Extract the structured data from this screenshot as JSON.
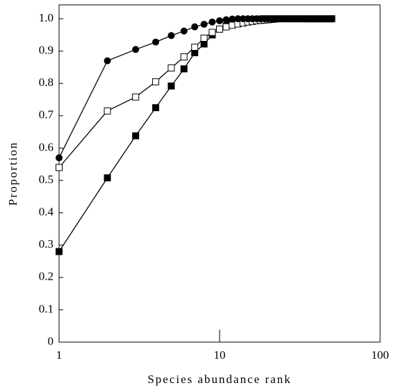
{
  "chart_data": {
    "type": "line",
    "xscale": "log",
    "x_label": "Species abundance rank",
    "y_label": "Proportion",
    "x": [
      1,
      2,
      3,
      4,
      5,
      6,
      7,
      8,
      9,
      10,
      11,
      12,
      13,
      14,
      15,
      16,
      17,
      18,
      19,
      20,
      21,
      22,
      23,
      24,
      25,
      26,
      27,
      28,
      29,
      30,
      31,
      32,
      33,
      34,
      35,
      36,
      37,
      38,
      39,
      40,
      41,
      42,
      43,
      44,
      45,
      46,
      47,
      48,
      49,
      50
    ],
    "series": [
      {
        "color": "#000000",
        "marker": "square",
        "marker_fill": "#000000",
        "values": [
          0.28,
          0.508,
          0.638,
          0.725,
          0.792,
          0.845,
          0.895,
          0.922,
          0.95,
          0.968,
          0.978,
          0.985,
          0.99,
          0.993,
          0.995,
          0.997,
          0.998,
          0.999,
          1,
          1,
          1,
          1,
          1,
          1,
          1,
          1,
          1,
          1,
          1,
          1,
          1,
          1,
          1,
          1,
          1,
          1,
          1,
          1,
          1,
          1,
          1,
          1,
          1,
          1,
          1,
          1,
          1,
          1,
          1,
          1
        ]
      },
      {
        "color": "#000000",
        "marker": "square",
        "marker_fill": "#ffffff",
        "values": [
          0.54,
          0.715,
          0.758,
          0.805,
          0.848,
          0.882,
          0.912,
          0.94,
          0.958,
          0.968,
          0.975,
          0.98,
          0.984,
          0.987,
          0.99,
          0.992,
          0.994,
          0.995,
          0.996,
          0.997,
          0.998,
          0.999,
          1,
          1,
          1,
          1,
          1,
          1,
          1,
          1,
          1,
          1,
          1,
          1,
          1,
          1,
          1,
          1,
          1,
          1,
          1,
          1,
          1,
          1,
          1,
          1,
          1,
          1,
          1,
          1
        ]
      },
      {
        "color": "#000000",
        "marker": "circle",
        "marker_fill": "#000000",
        "values": [
          0.57,
          0.87,
          0.905,
          0.928,
          0.948,
          0.962,
          0.975,
          0.983,
          0.99,
          0.994,
          0.997,
          0.999,
          1,
          1,
          1,
          1,
          1,
          1,
          1,
          1,
          1,
          1,
          1,
          1,
          1,
          1,
          1,
          1,
          1,
          1,
          1,
          1,
          1,
          1,
          1,
          1,
          1,
          1,
          1,
          1,
          1,
          1,
          1,
          1,
          1,
          1,
          1,
          1,
          1,
          1
        ]
      }
    ],
    "xlim": [
      1,
      100
    ],
    "xticks": [
      1,
      10,
      100
    ],
    "ylim": [
      0,
      1.043
    ],
    "yticks": [
      0,
      0.1,
      0.2,
      0.3,
      0.4,
      0.5,
      0.6,
      0.7,
      0.8,
      0.9,
      {
        "value": 1,
        "label": "1.0"
      }
    ],
    "grid": false
  }
}
